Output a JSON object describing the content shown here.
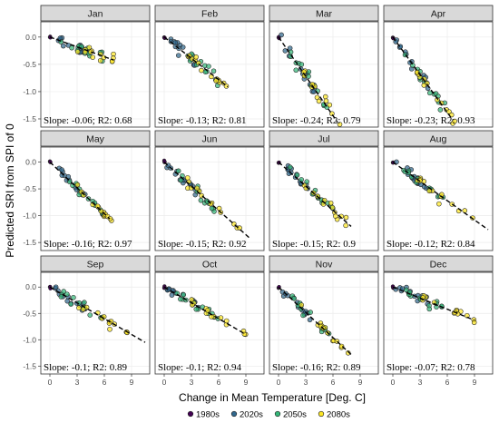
{
  "chart_data": {
    "type": "scatter",
    "xlabel": "Change in Mean Temperature [Deg. C]",
    "ylabel": "Predicted SRI from SPI of 0",
    "xlim": [
      -1,
      11
    ],
    "ylim": [
      -1.65,
      0.28
    ],
    "x_ticks": [
      0,
      3,
      6,
      9
    ],
    "y_ticks": [
      0.0,
      -0.5,
      -1.0,
      -1.5
    ],
    "y_tick_labels": [
      "0.0",
      "-0.5",
      "-1.0",
      "-1.5"
    ],
    "grid": true,
    "legend_position": "bottom",
    "legend": [
      {
        "name": "1980s",
        "color": "#440154"
      },
      {
        "name": "2020s",
        "color": "#31688e"
      },
      {
        "name": "2050s",
        "color": "#35b779"
      },
      {
        "name": "2080s",
        "color": "#fde725"
      }
    ],
    "panels": [
      {
        "month": "Jan",
        "slope": -0.06,
        "r2": 0.68,
        "label": "Slope: -0.06; R2: 0.68",
        "line": {
          "x": [
            0,
            7
          ],
          "y": [
            0.0,
            -0.42
          ]
        }
      },
      {
        "month": "Feb",
        "slope": -0.13,
        "r2": 0.81,
        "label": "Slope: -0.13; R2: 0.81",
        "line": {
          "x": [
            0,
            7
          ],
          "y": [
            0.0,
            -0.91
          ]
        }
      },
      {
        "month": "Mar",
        "slope": -0.24,
        "r2": 0.79,
        "label": "Slope: -0.24; R2: 0.79",
        "line": {
          "x": [
            0,
            6.5
          ],
          "y": [
            0.0,
            -1.56
          ]
        }
      },
      {
        "month": "Apr",
        "slope": -0.23,
        "r2": 0.93,
        "label": "Slope: -0.23; R2: 0.93",
        "line": {
          "x": [
            0,
            6.6
          ],
          "y": [
            0.0,
            -1.52
          ]
        }
      },
      {
        "month": "May",
        "slope": -0.16,
        "r2": 0.97,
        "label": "Slope: -0.16; R2: 0.97",
        "line": {
          "x": [
            0,
            6.6
          ],
          "y": [
            0.0,
            -1.06
          ]
        }
      },
      {
        "month": "Jun",
        "slope": -0.15,
        "r2": 0.92,
        "label": "Slope: -0.15; R2: 0.92",
        "line": {
          "x": [
            0,
            9.5
          ],
          "y": [
            0.0,
            -1.43
          ]
        }
      },
      {
        "month": "Jul",
        "slope": -0.15,
        "r2": 0.9,
        "label": "Slope: -0.15; R2: 0.9",
        "line": {
          "x": [
            0,
            8
          ],
          "y": [
            0.0,
            -1.2
          ]
        }
      },
      {
        "month": "Aug",
        "slope": -0.12,
        "r2": 0.84,
        "label": "Slope: -0.12; R2: 0.84",
        "line": {
          "x": [
            0,
            10.5
          ],
          "y": [
            0.0,
            -1.26
          ]
        }
      },
      {
        "month": "Sep",
        "slope": -0.1,
        "r2": 0.89,
        "label": "Slope: -0.1; R2: 0.89",
        "line": {
          "x": [
            0,
            10.5
          ],
          "y": [
            0.0,
            -1.05
          ]
        }
      },
      {
        "month": "Oct",
        "slope": -0.1,
        "r2": 0.94,
        "label": "Slope: -0.1; R2: 0.94",
        "line": {
          "x": [
            0,
            9
          ],
          "y": [
            0.0,
            -0.9
          ]
        }
      },
      {
        "month": "Nov",
        "slope": -0.16,
        "r2": 0.89,
        "label": "Slope: -0.16; R2: 0.89",
        "line": {
          "x": [
            0,
            8
          ],
          "y": [
            0.0,
            -1.28
          ]
        }
      },
      {
        "month": "Dec",
        "slope": -0.07,
        "r2": 0.78,
        "label": "Slope: -0.07; R2: 0.78",
        "line": {
          "x": [
            0,
            9
          ],
          "y": [
            0.0,
            -0.63
          ]
        }
      }
    ]
  }
}
